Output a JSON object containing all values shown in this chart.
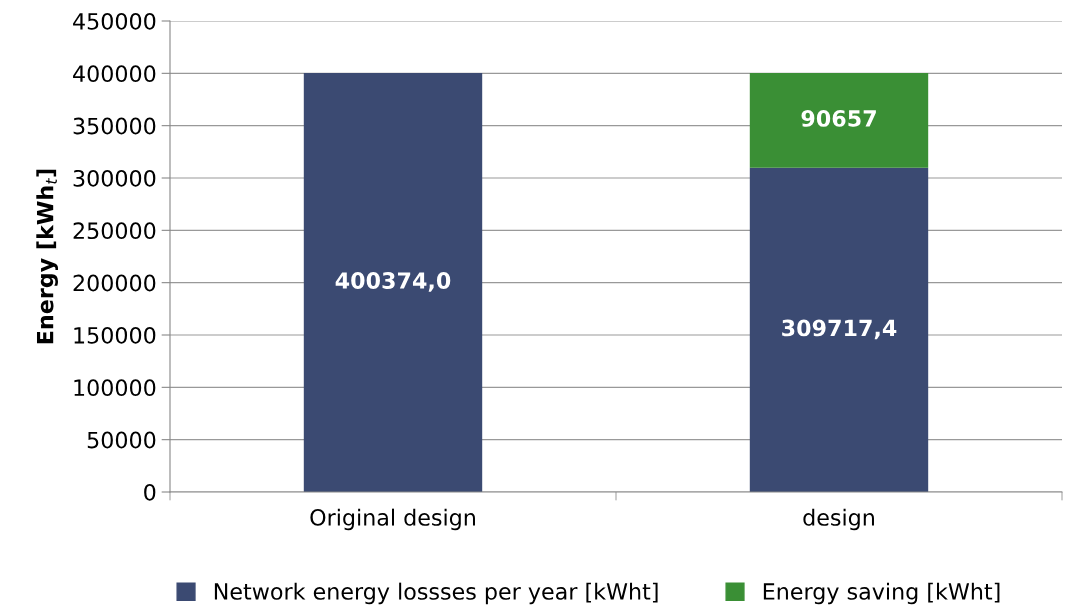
{
  "chart_data": {
    "type": "bar",
    "stacked": true,
    "ylabel": "Energy [kWh$_{t}$]",
    "categories": [
      "Original design",
      "design"
    ],
    "series": [
      {
        "name": "Network energy lossses per year [kWht]",
        "color": "#3b4a72",
        "values": [
          400374.0,
          309717.4
        ],
        "value_labels": [
          "400374,0",
          "309717,4"
        ]
      },
      {
        "name": "Energy saving [kWht]",
        "color": "#3a8f35",
        "values": [
          null,
          90657
        ],
        "value_labels": [
          null,
          "90657"
        ]
      }
    ],
    "ylim": [
      0,
      450000
    ],
    "yticks": [
      0,
      50000,
      100000,
      150000,
      200000,
      250000,
      300000,
      350000,
      400000,
      450000
    ],
    "grid": "y",
    "legend": "bottom"
  }
}
